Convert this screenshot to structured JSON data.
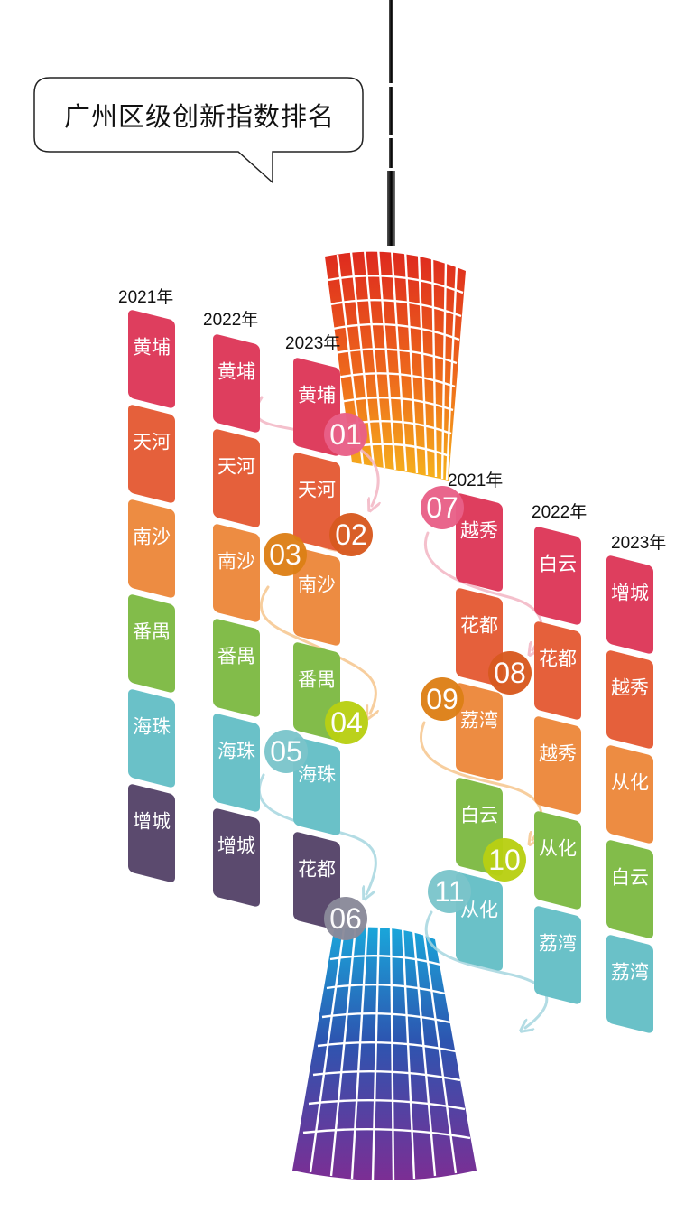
{
  "title": "广州区级创新指数排名",
  "colors": {
    "rank1": "#DE3E5E",
    "rank2": "#E5603B",
    "rank3": "#ED8C42",
    "rank4": "#82BC4A",
    "rank5": "#6AC1C8",
    "rank6": "#5B4A6E"
  },
  "left_group": {
    "columns": [
      {
        "year": "2021年",
        "districts": [
          "黄埔",
          "天河",
          "南沙",
          "番禺",
          "海珠",
          "增城"
        ]
      },
      {
        "year": "2022年",
        "districts": [
          "黄埔",
          "天河",
          "南沙",
          "番禺",
          "海珠",
          "增城"
        ]
      },
      {
        "year": "2023年",
        "districts": [
          "黄埔",
          "天河",
          "南沙",
          "番禺",
          "海珠",
          "花都"
        ]
      }
    ]
  },
  "right_group": {
    "columns": [
      {
        "year": "2021年",
        "districts": [
          "越秀",
          "花都",
          "荔湾",
          "白云",
          "从化"
        ]
      },
      {
        "year": "2022年",
        "districts": [
          "白云",
          "花都",
          "越秀",
          "从化",
          "荔湾"
        ]
      },
      {
        "year": "2023年",
        "districts": [
          "增城",
          "越秀",
          "从化",
          "白云",
          "荔湾"
        ]
      }
    ]
  },
  "ranks": [
    {
      "label": "01",
      "color": "#E96088"
    },
    {
      "label": "02",
      "color": "#D8591F"
    },
    {
      "label": "03",
      "color": "#DD8016"
    },
    {
      "label": "04",
      "color": "#B9D012"
    },
    {
      "label": "05",
      "color": "#7BC5CB"
    },
    {
      "label": "06",
      "color": "#8A8A9A"
    },
    {
      "label": "07",
      "color": "#E96088"
    },
    {
      "label": "08",
      "color": "#D8591F"
    },
    {
      "label": "09",
      "color": "#DD8016"
    },
    {
      "label": "10",
      "color": "#B9D012"
    },
    {
      "label": "11",
      "color": "#7BC5CB"
    }
  ]
}
